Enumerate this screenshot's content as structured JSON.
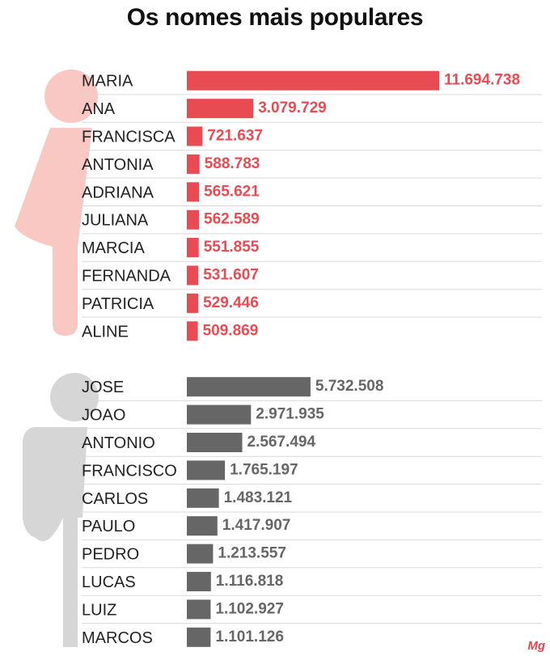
{
  "title": "Os nomes mais populares",
  "brand": "Mg",
  "colors": {
    "female_bar": "#e94b53",
    "female_icon": "#f9c8c2",
    "male_bar": "#666666",
    "male_icon": "#d6d6d6",
    "divider": "#d9d9d9"
  },
  "chart_data": [
    {
      "type": "bar",
      "orientation": "horizontal",
      "group": "female",
      "categories": [
        "MARIA",
        "ANA",
        "FRANCISCA",
        "ANTONIA",
        "ADRIANA",
        "JULIANA",
        "MARCIA",
        "FERNANDA",
        "PATRICIA",
        "ALINE"
      ],
      "values": [
        11694738,
        3079729,
        721637,
        588783,
        565621,
        562589,
        551855,
        531607,
        529446,
        509869
      ],
      "value_labels": [
        "11.694.738",
        "3.079.729",
        "721.637",
        "588.783",
        "565.621",
        "562.589",
        "551.855",
        "531.607",
        "529.446",
        "509.869"
      ],
      "xlim": [
        0,
        11694738
      ]
    },
    {
      "type": "bar",
      "orientation": "horizontal",
      "group": "male",
      "categories": [
        "JOSE",
        "JOAO",
        "ANTONIO",
        "FRANCISCO",
        "CARLOS",
        "PAULO",
        "PEDRO",
        "LUCAS",
        "LUIZ",
        "MARCOS"
      ],
      "values": [
        5732508,
        2971935,
        2567494,
        1765197,
        1483121,
        1417907,
        1213557,
        1116818,
        1102927,
        1101126
      ],
      "value_labels": [
        "5.732.508",
        "2.971.935",
        "2.567.494",
        "1.765.197",
        "1.483.121",
        "1.417.907",
        "1.213.557",
        "1.116.818",
        "1.102.927",
        "1.101.126"
      ],
      "xlim": [
        0,
        11694738
      ]
    }
  ]
}
